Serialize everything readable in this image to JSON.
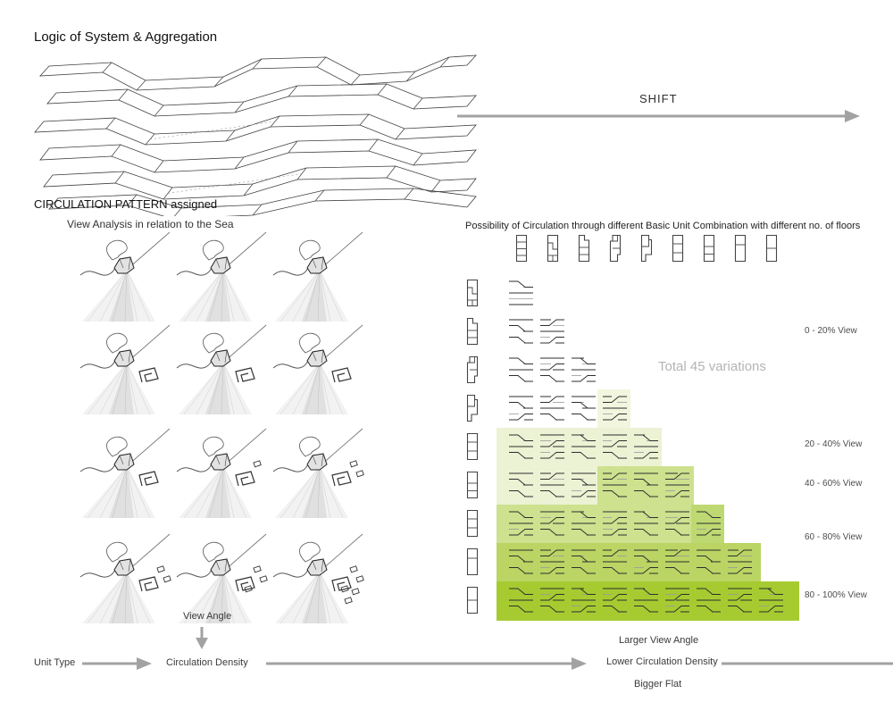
{
  "title": "Logic of System & Aggregation",
  "shift": {
    "label": "SHIFT"
  },
  "circulation": {
    "heading": "CIRCULATION PATTERN assigned",
    "subheading": "View Analysis in relation to the Sea",
    "grid_rows": 4,
    "grid_cols": 3
  },
  "matrix": {
    "heading": "Possibility of Circulation through different Basic Unit Combination with different no. of floors",
    "total_label": "Total 45 variations",
    "total_variations": 45,
    "view_labels": [
      "0 - 20% View",
      "20 - 40% View",
      "40 - 60% View",
      "60 - 80% View",
      "80 - 100% View"
    ],
    "top_icons": [
      "unit-4-even",
      "unit-4-zigzag",
      "unit-4-notch",
      "unit-step-left",
      "unit-step-right",
      "unit-3-even",
      "unit-3-low",
      "unit-2-high",
      "unit-2-even"
    ],
    "left_icons": [
      "unit-4-zigzag",
      "unit-4-notch",
      "unit-step-left",
      "unit-step-right",
      "unit-3-even",
      "unit-3-low",
      "unit-3-even",
      "unit-2-high",
      "unit-2-even"
    ],
    "rows": [
      {
        "cells": 1,
        "bg": [
          null
        ]
      },
      {
        "cells": 2,
        "bg": [
          null,
          null
        ]
      },
      {
        "cells": 3,
        "bg": [
          null,
          null,
          null
        ]
      },
      {
        "cells": 4,
        "bg": [
          null,
          null,
          null,
          "pale1"
        ]
      },
      {
        "cells": 5,
        "bg": [
          "pale",
          "pale",
          "pale",
          "pale",
          "pale"
        ]
      },
      {
        "cells": 6,
        "bg": [
          "pale",
          "pale",
          "pale",
          "med",
          "med",
          "med"
        ]
      },
      {
        "cells": 7,
        "bg": [
          "med",
          "med",
          "med",
          "med",
          "med",
          "med",
          "med2"
        ]
      },
      {
        "cells": 8,
        "bg": [
          "row8",
          "row8",
          "row8",
          "row8",
          "row8",
          "row8",
          "row8",
          "row8"
        ]
      },
      {
        "cells": 9,
        "bg": [
          "row9",
          "row9",
          "row9",
          "row9",
          "row9",
          "row9",
          "row9",
          "row9",
          "row9"
        ]
      }
    ],
    "colors": {
      "pale1": "#f2f6df",
      "pale": "#ecf2d4",
      "med": "#cde18e",
      "med2": "#bed972",
      "row8": "#bad564",
      "row9": "#a6cb31"
    }
  },
  "bottom": {
    "view_angle": "View Angle",
    "unit_type": "Unit Type",
    "circulation_density": "Circulation Density",
    "larger_view_angle": "Larger View Angle",
    "lower_circulation_density": "Lower Circulation Density",
    "bigger_flat": "Bigger Flat"
  },
  "arrow_color": "#a2a2a2"
}
